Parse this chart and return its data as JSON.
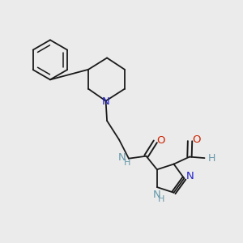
{
  "background_color": "#ebebeb",
  "bond_color": "#1a1a1a",
  "nitrogen_color": "#2222cc",
  "oxygen_color": "#cc2200",
  "nh_color": "#6699aa",
  "figsize": [
    3.0,
    3.0
  ],
  "dpi": 100,
  "xlim": [
    0,
    10
  ],
  "ylim": [
    0,
    10
  ]
}
